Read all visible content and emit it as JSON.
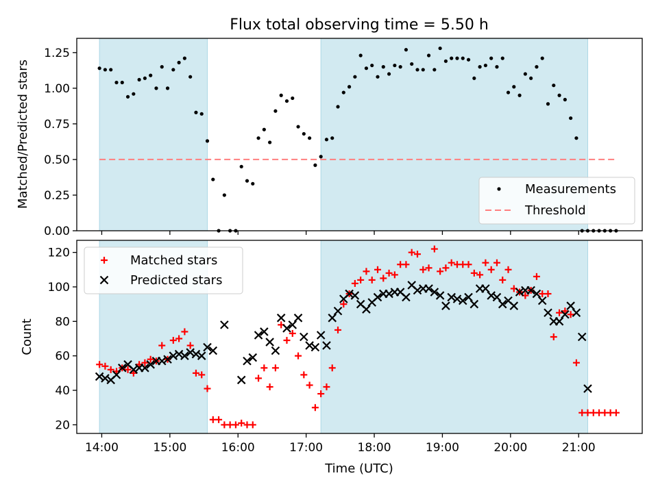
{
  "figure": {
    "title": "Flux total observing time = 5.50 h",
    "xlabel": "Time (UTC)"
  },
  "colors": {
    "observing_span": "#add8e6",
    "measurements": "#000000",
    "threshold": "#ff7f7f",
    "matched": "#ff0000",
    "predicted": "#000000"
  },
  "chart_data": [
    {
      "type": "scatter",
      "panel": "top",
      "ylabel": "Matched/Predicted stars",
      "xlim": [
        "13:38",
        "21:56"
      ],
      "ylim": [
        0,
        1.35
      ],
      "yticks": [
        0.0,
        0.25,
        0.5,
        0.75,
        1.0,
        1.25
      ],
      "ytick_labels": [
        "0.00",
        "0.25",
        "0.50",
        "0.75",
        "1.00",
        "1.25"
      ],
      "xticks": [
        "14:00",
        "15:00",
        "16:00",
        "17:00",
        "18:00",
        "19:00",
        "20:00",
        "21:00"
      ],
      "observing_spans": [
        [
          "13:58",
          "15:33"
        ],
        [
          "17:13",
          "21:08"
        ]
      ],
      "threshold": {
        "name": "Threshold",
        "y": 0.5,
        "x_range": [
          "13:58",
          "21:33"
        ]
      },
      "legend": {
        "position": "lower right",
        "entries": [
          "Measurements",
          "Threshold"
        ]
      },
      "series": [
        {
          "name": "Measurements",
          "x": [
            "13:58",
            "14:03",
            "14:08",
            "14:13",
            "14:18",
            "14:23",
            "14:28",
            "14:33",
            "14:38",
            "14:43",
            "14:48",
            "14:53",
            "14:58",
            "15:03",
            "15:08",
            "15:13",
            "15:18",
            "15:23",
            "15:28",
            "15:33",
            "15:38",
            "15:43",
            "15:48",
            "15:53",
            "15:58",
            "16:03",
            "16:08",
            "16:13",
            "16:18",
            "16:23",
            "16:28",
            "16:33",
            "16:38",
            "16:43",
            "16:48",
            "16:53",
            "16:58",
            "17:03",
            "17:08",
            "17:13",
            "17:18",
            "17:23",
            "17:28",
            "17:33",
            "17:38",
            "17:43",
            "17:48",
            "17:53",
            "17:58",
            "18:03",
            "18:08",
            "18:13",
            "18:18",
            "18:23",
            "18:28",
            "18:33",
            "18:38",
            "18:43",
            "18:48",
            "18:53",
            "18:58",
            "19:03",
            "19:08",
            "19:13",
            "19:18",
            "19:23",
            "19:28",
            "19:33",
            "19:38",
            "19:43",
            "19:48",
            "19:53",
            "19:58",
            "20:03",
            "20:08",
            "20:13",
            "20:18",
            "20:23",
            "20:28",
            "20:33",
            "20:38",
            "20:43",
            "20:48",
            "20:53",
            "20:58",
            "21:03",
            "21:08",
            "21:13",
            "21:18",
            "21:23",
            "21:28",
            "21:33"
          ],
          "y": [
            1.14,
            1.13,
            1.13,
            1.04,
            1.04,
            0.94,
            0.96,
            1.06,
            1.07,
            1.09,
            1.0,
            1.15,
            1.0,
            1.13,
            1.18,
            1.21,
            1.08,
            0.83,
            0.82,
            0.63,
            0.36,
            0.0,
            0.25,
            0.0,
            0.0,
            0.45,
            0.35,
            0.33,
            0.65,
            0.71,
            0.62,
            0.84,
            0.95,
            0.91,
            0.93,
            0.73,
            0.68,
            0.65,
            0.46,
            0.52,
            0.64,
            0.65,
            0.87,
            0.97,
            1.01,
            1.08,
            1.23,
            1.14,
            1.16,
            1.08,
            1.15,
            1.1,
            1.16,
            1.15,
            1.27,
            1.17,
            1.13,
            1.13,
            1.23,
            1.13,
            1.28,
            1.19,
            1.21,
            1.21,
            1.21,
            1.2,
            1.07,
            1.15,
            1.16,
            1.21,
            1.15,
            1.21,
            0.97,
            1.01,
            0.95,
            1.1,
            1.07,
            1.15,
            1.21,
            0.89,
            1.02,
            0.95,
            0.92,
            0.79,
            0.65,
            0.0,
            0.0,
            0.0,
            0.0,
            0.0,
            0.0,
            0.0
          ]
        }
      ]
    },
    {
      "type": "scatter",
      "panel": "bottom",
      "ylabel": "Count",
      "xlim": [
        "13:38",
        "21:56"
      ],
      "ylim": [
        15,
        127
      ],
      "yticks": [
        20,
        40,
        60,
        80,
        100,
        120
      ],
      "ytick_labels": [
        "20",
        "40",
        "60",
        "80",
        "100",
        "120"
      ],
      "xticks": [
        "14:00",
        "15:00",
        "16:00",
        "17:00",
        "18:00",
        "19:00",
        "20:00",
        "21:00"
      ],
      "observing_spans": [
        [
          "13:58",
          "15:33"
        ],
        [
          "17:13",
          "21:08"
        ]
      ],
      "legend": {
        "position": "upper left",
        "entries": [
          "Matched stars",
          "Predicted stars"
        ]
      },
      "series": [
        {
          "name": "Matched stars",
          "marker": "+",
          "x": [
            "13:58",
            "14:03",
            "14:08",
            "14:13",
            "14:18",
            "14:23",
            "14:28",
            "14:33",
            "14:38",
            "14:43",
            "14:48",
            "14:53",
            "14:58",
            "15:03",
            "15:08",
            "15:13",
            "15:18",
            "15:23",
            "15:28",
            "15:33",
            "15:38",
            "15:43",
            "15:48",
            "15:53",
            "15:58",
            "16:03",
            "16:08",
            "16:13",
            "16:18",
            "16:23",
            "16:28",
            "16:33",
            "16:38",
            "16:43",
            "16:48",
            "16:53",
            "16:58",
            "17:03",
            "17:08",
            "17:13",
            "17:18",
            "17:23",
            "17:28",
            "17:33",
            "17:38",
            "17:43",
            "17:48",
            "17:53",
            "17:58",
            "18:03",
            "18:08",
            "18:13",
            "18:18",
            "18:23",
            "18:28",
            "18:33",
            "18:38",
            "18:43",
            "18:48",
            "18:53",
            "18:58",
            "19:03",
            "19:08",
            "19:13",
            "19:18",
            "19:23",
            "19:28",
            "19:33",
            "19:38",
            "19:43",
            "19:48",
            "19:53",
            "19:58",
            "20:03",
            "20:08",
            "20:13",
            "20:18",
            "20:23",
            "20:28",
            "20:33",
            "20:38",
            "20:43",
            "20:48",
            "20:53",
            "20:58",
            "21:03",
            "21:08",
            "21:13",
            "21:18",
            "21:23",
            "21:28",
            "21:33"
          ],
          "y": [
            55,
            54,
            52,
            51,
            53,
            52,
            50,
            55,
            56,
            58,
            57,
            66,
            58,
            69,
            70,
            74,
            66,
            50,
            49,
            41,
            23,
            23,
            20,
            20,
            20,
            21,
            20,
            20,
            47,
            53,
            42,
            53,
            78,
            69,
            73,
            60,
            49,
            43,
            30,
            38,
            42,
            53,
            75,
            90,
            96,
            102,
            104,
            109,
            104,
            110,
            105,
            108,
            107,
            113,
            113,
            120,
            119,
            110,
            111,
            122,
            109,
            111,
            114,
            113,
            113,
            113,
            108,
            107,
            114,
            110,
            114,
            104,
            110,
            99,
            97,
            95,
            98,
            106,
            96,
            96,
            71,
            85,
            86,
            84,
            56,
            27,
            27,
            27,
            27,
            27,
            27,
            27
          ]
        },
        {
          "name": "Predicted stars",
          "marker": "x",
          "x": [
            "13:58",
            "14:03",
            "14:08",
            "14:13",
            "14:18",
            "14:23",
            "14:28",
            "14:33",
            "14:38",
            "14:43",
            "14:48",
            "14:53",
            "14:58",
            "15:03",
            "15:08",
            "15:13",
            "15:18",
            "15:23",
            "15:28",
            "15:33",
            "15:38",
            "15:48",
            "16:03",
            "16:08",
            "16:13",
            "16:18",
            "16:23",
            "16:28",
            "16:33",
            "16:38",
            "16:43",
            "16:48",
            "16:53",
            "16:58",
            "17:03",
            "17:08",
            "17:13",
            "17:18",
            "17:23",
            "17:28",
            "17:33",
            "17:38",
            "17:43",
            "17:48",
            "17:53",
            "17:58",
            "18:03",
            "18:08",
            "18:13",
            "18:18",
            "18:23",
            "18:28",
            "18:33",
            "18:38",
            "18:43",
            "18:48",
            "18:53",
            "18:58",
            "19:03",
            "19:08",
            "19:13",
            "19:18",
            "19:23",
            "19:28",
            "19:33",
            "19:38",
            "19:43",
            "19:48",
            "19:53",
            "19:58",
            "20:03",
            "20:08",
            "20:13",
            "20:18",
            "20:23",
            "20:28",
            "20:33",
            "20:38",
            "20:43",
            "20:48",
            "20:53",
            "20:58",
            "21:03",
            "21:08"
          ],
          "y": [
            48,
            47,
            46,
            49,
            53,
            55,
            52,
            53,
            53,
            55,
            57,
            57,
            58,
            60,
            61,
            60,
            62,
            61,
            60,
            65,
            63,
            78,
            46,
            57,
            59,
            72,
            74,
            68,
            63,
            82,
            76,
            78,
            82,
            71,
            66,
            65,
            72,
            66,
            82,
            86,
            93,
            96,
            95,
            90,
            87,
            91,
            94,
            96,
            96,
            97,
            97,
            94,
            101,
            98,
            99,
            99,
            97,
            95,
            89,
            94,
            93,
            92,
            94,
            90,
            99,
            99,
            95,
            94,
            90,
            92,
            89,
            97,
            98,
            98,
            96,
            92,
            85,
            80,
            80,
            84,
            89,
            85,
            71,
            41
          ]
        }
      ]
    }
  ]
}
